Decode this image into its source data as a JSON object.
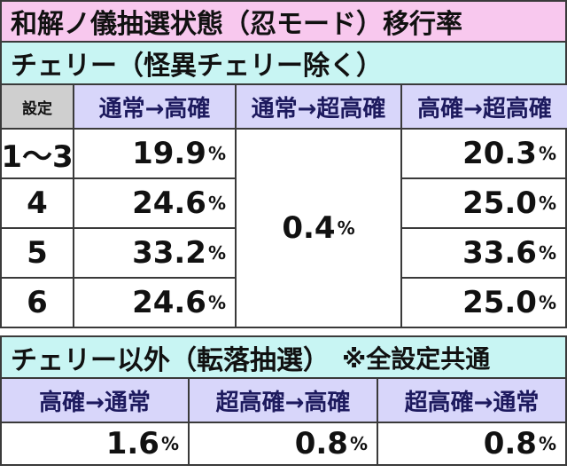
{
  "title": "和解ノ儀抽選状態（忍モード）移行率",
  "table1": {
    "caption": "チェリー（怪異チェリー除く）",
    "headers": [
      "設定",
      "通常→高確",
      "通常→超高確",
      "高確→超高確"
    ],
    "rows": [
      [
        "1〜3",
        {
          "n": "19.9",
          "u": "%"
        },
        {
          "n": "20.3",
          "u": "%"
        }
      ],
      [
        "4",
        {
          "n": "24.6",
          "u": "%"
        },
        {
          "n": "25.0",
          "u": "%"
        }
      ],
      [
        "5",
        {
          "n": "33.2",
          "u": "%"
        },
        {
          "n": "33.6",
          "u": "%"
        }
      ],
      [
        "6",
        {
          "n": "24.6",
          "u": "%"
        },
        {
          "n": "25.0",
          "u": "%"
        }
      ]
    ],
    "merged": {
      "n": "0.4",
      "u": "%"
    }
  },
  "table2": {
    "caption": "チェリー以外（転落抽選）",
    "note": "※全設定共通",
    "headers": [
      "高確→通常",
      "超高確→高確",
      "超高確→通常"
    ],
    "values": [
      {
        "n": "1.6",
        "u": "%"
      },
      {
        "n": "0.8",
        "u": "%"
      },
      {
        "n": "0.8",
        "u": "%"
      }
    ]
  }
}
